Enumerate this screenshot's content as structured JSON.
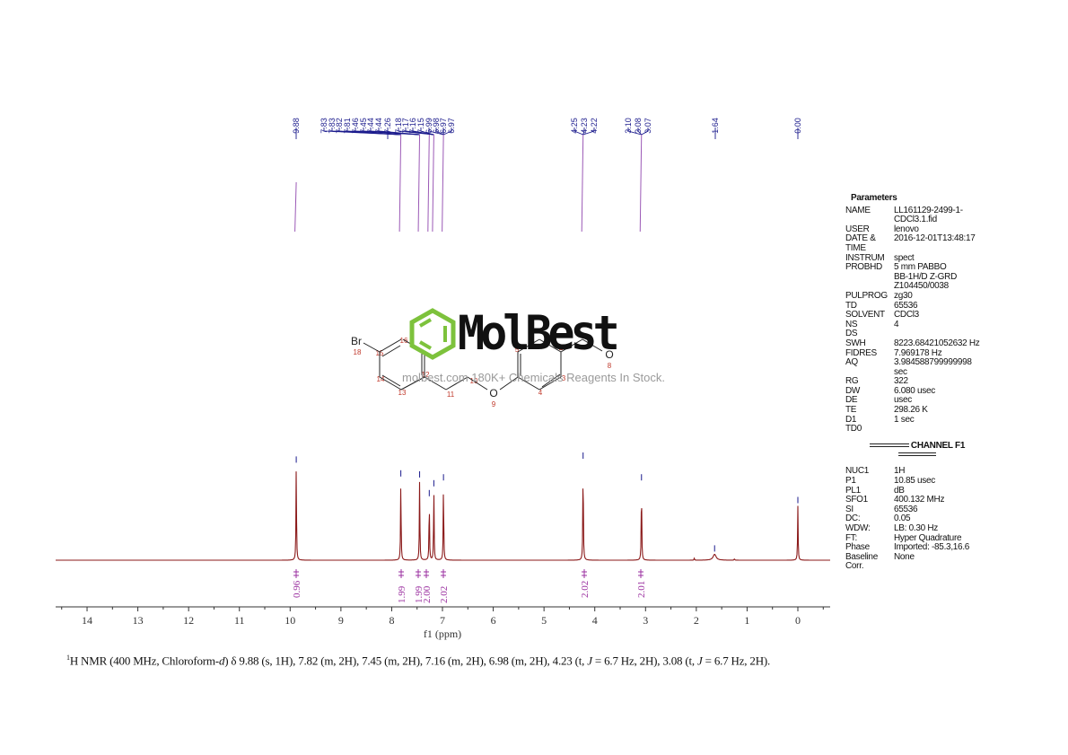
{
  "chart_data": {
    "type": "line",
    "title": "1H NMR spectrum",
    "xlabel": "f1 (ppm)",
    "ylabel": "",
    "xlim": [
      14.6,
      -0.6
    ],
    "x_reversed": true,
    "grid": false,
    "x_ticks": [
      14,
      13,
      12,
      11,
      10,
      9,
      8,
      7,
      6,
      5,
      4,
      3,
      2,
      1,
      0
    ],
    "peaks": [
      {
        "ppm": 9.88,
        "height": 0.96,
        "label": "9.88"
      },
      {
        "ppm": 7.82,
        "height": 0.82
      },
      {
        "ppm": 7.45,
        "height": 0.81
      },
      {
        "ppm": 7.26,
        "height": 0.62
      },
      {
        "ppm": 7.17,
        "height": 0.72
      },
      {
        "ppm": 6.98,
        "height": 0.78
      },
      {
        "ppm": 4.23,
        "height": 1.0
      },
      {
        "ppm": 3.08,
        "height": 0.78
      },
      {
        "ppm": 2.04,
        "height": 0.02
      },
      {
        "ppm": 1.64,
        "height": 0.06
      },
      {
        "ppm": 1.25,
        "height": 0.015
      },
      {
        "ppm": 0.0,
        "height": 0.55
      }
    ],
    "peak_labels_groups": [
      {
        "anchor_ppm": 9.88,
        "labels": [
          "9.88"
        ]
      },
      {
        "anchor_ppm": 7.82,
        "labels": [
          "7.83",
          "7.83",
          "7.82",
          "7.81"
        ]
      },
      {
        "anchor_ppm": 7.45,
        "labels": [
          "7.46",
          "7.45",
          "7.44",
          "7.44"
        ]
      },
      {
        "anchor_ppm": 7.26,
        "labels": [
          "7.26"
        ]
      },
      {
        "anchor_ppm": 7.17,
        "labels": [
          "7.18",
          "7.17",
          "7.16",
          "7.15"
        ]
      },
      {
        "anchor_ppm": 6.98,
        "labels": [
          "6.99",
          "6.98",
          "6.97",
          "6.97"
        ]
      },
      {
        "anchor_ppm": 4.23,
        "labels": [
          "4.25",
          "4.23",
          "4.22"
        ]
      },
      {
        "anchor_ppm": 3.08,
        "labels": [
          "3.10",
          "3.08",
          "3.07"
        ]
      },
      {
        "anchor_ppm": 1.64,
        "labels": [
          "1.64"
        ]
      },
      {
        "anchor_ppm": 0.0,
        "labels": [
          "0.00"
        ]
      }
    ],
    "integrals": [
      {
        "ppm": 9.88,
        "value": "0.96"
      },
      {
        "ppm": 7.82,
        "value": "1.99"
      },
      {
        "ppm": 7.45,
        "value": "1.99"
      },
      {
        "ppm": 7.16,
        "value": "2.00"
      },
      {
        "ppm": 6.98,
        "value": "2.02"
      },
      {
        "ppm": 4.23,
        "value": "2.02"
      },
      {
        "ppm": 3.08,
        "value": "2.01"
      }
    ],
    "colors": {
      "spectrum": "#8b1a1a",
      "labels": "#1a1a8c",
      "integrals": "#9b30a0",
      "pointer_lines": "#8e44ad",
      "axis": "#333333"
    }
  },
  "peak_label_strings": [
    "9.88",
    "7.83",
    "7.83",
    "7.82",
    "7.81",
    "7.46",
    "7.45",
    "7.44",
    "7.44",
    "7.26",
    "7.18",
    "7.17",
    "7.16",
    "7.15",
    "6.99",
    "6.98",
    "6.97",
    "6.97",
    "4.25",
    "4.23",
    "4.22",
    "3.10",
    "3.08",
    "3.07",
    "1.64",
    "0.00"
  ],
  "axis": {
    "ticks": [
      "14",
      "13",
      "12",
      "11",
      "10",
      "9",
      "8",
      "7",
      "6",
      "5",
      "4",
      "3",
      "2",
      "1",
      "0"
    ],
    "label": "f1  (ppm)"
  },
  "integrals_text": [
    "0.96",
    "1.99",
    "1.99",
    "2.00",
    "2.02",
    "2.02",
    "2.01"
  ],
  "parameters": {
    "title": "Parameters",
    "rows": [
      {
        "key": "NAME",
        "value": "LL161129-2499-1-\nCDCl3.1.fid"
      },
      {
        "key": "USER",
        "value": "lenovo"
      },
      {
        "key": "DATE &\nTIME",
        "value": "2016-12-01T13:48:17"
      },
      {
        "key": "INSTRUM",
        "value": "spect"
      },
      {
        "key": "PROBHD",
        "value": "5 mm PABBO\nBB-1H/D Z-GRD\nZ104450/0038"
      },
      {
        "key": "PULPROG",
        "value": "zg30"
      },
      {
        "key": "TD",
        "value": "65536"
      },
      {
        "key": "SOLVENT",
        "value": "CDCl3"
      },
      {
        "key": "NS",
        "value": "4"
      },
      {
        "key": "DS",
        "value": ""
      },
      {
        "key": "SWH",
        "value": "8223.68421052632 Hz"
      },
      {
        "key": "FIDRES",
        "value": "7.969178 Hz"
      },
      {
        "key": "AQ",
        "value": "3.984588799999998\nsec"
      },
      {
        "key": "RG",
        "value": "322"
      },
      {
        "key": "DW",
        "value": "6.080 usec"
      },
      {
        "key": "DE",
        "value": "usec"
      },
      {
        "key": "TE",
        "value": "298.26 K"
      },
      {
        "key": "D1",
        "value": "1 sec"
      },
      {
        "key": "TD0",
        "value": ""
      }
    ],
    "channel_title": "CHANNEL F1",
    "channel_rows": [
      {
        "key": "NUC1",
        "value": "1H"
      },
      {
        "key": "P1",
        "value": "10.85 usec"
      },
      {
        "key": "PL1",
        "value": "dB"
      },
      {
        "key": "SFO1",
        "value": "400.132 MHz"
      },
      {
        "key": "SI",
        "value": "65536"
      },
      {
        "key": "DC:",
        "value": "0.05"
      },
      {
        "key": "WDW:",
        "value": "LB: 0.30 Hz"
      },
      {
        "key": "FT:",
        "value": "Hyper Quadrature"
      },
      {
        "key": "Phase",
        "value": "Imported: -85.3,16.6"
      },
      {
        "key": "Baseline",
        "value": "None"
      },
      {
        "key": "Corr.",
        "value": ""
      }
    ]
  },
  "structure": {
    "atoms": {
      "Br": "Br",
      "O_ether": "O",
      "O_ald": "O"
    },
    "atom_numbers": [
      "18",
      "15",
      "16",
      "14",
      "13",
      "12",
      "11",
      "10",
      "9",
      "5",
      "4",
      "3",
      "2",
      "8"
    ]
  },
  "watermark": {
    "logo_text": "MolBest",
    "tagline": "molbest.com  180K+ Chemicals Reagents In Stock."
  },
  "caption": {
    "sup": "1",
    "text": "H NMR (400 MHz, Chloroform-",
    "italic_d": "d",
    "rest": ") δ 9.88 (s, 1H), 7.82 (m, 2H), 7.45 (m, 2H), 7.16 (m, 2H), 6.98 (m, 2H), 4.23 (t, ",
    "J1": "J",
    "mid": " = 6.7 Hz, 2H), 3.08 (t, ",
    "J2": "J",
    "end": " = 6.7 Hz, 2H)."
  }
}
